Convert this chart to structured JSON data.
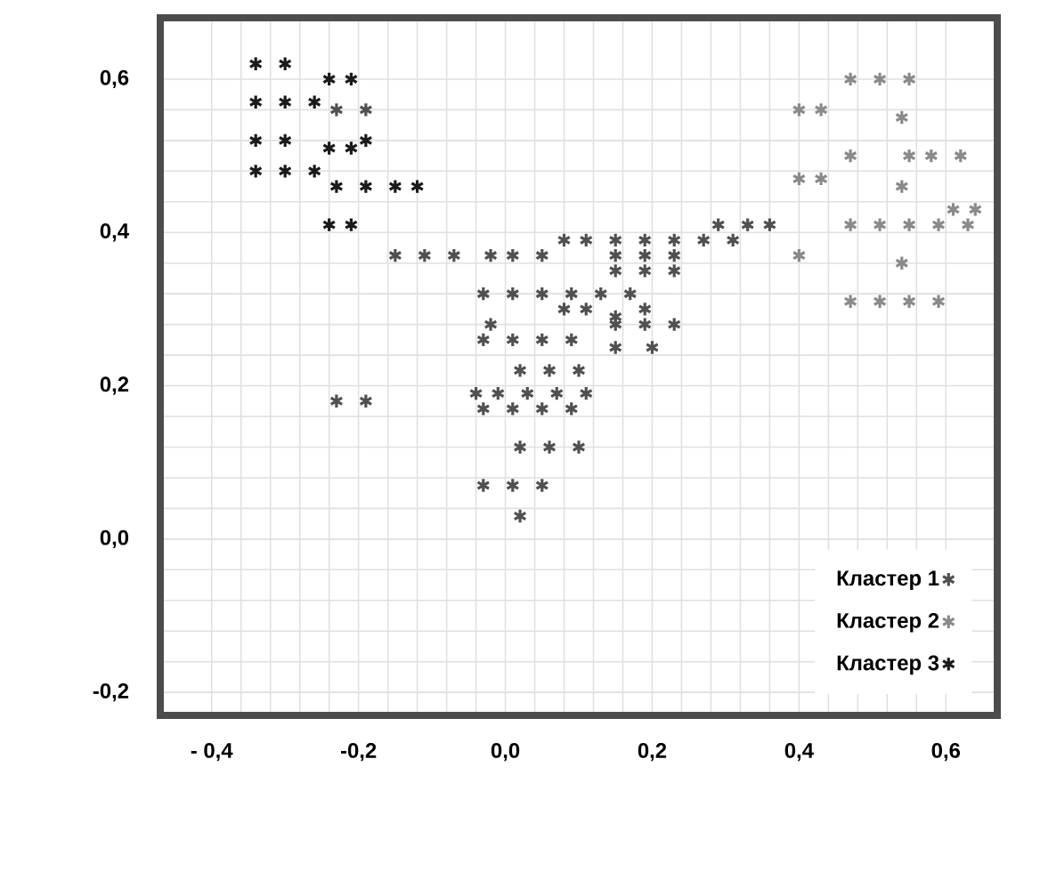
{
  "chart_data": {
    "type": "scatter",
    "marker": "cross",
    "grid": true,
    "legend": "bottom right",
    "xlim": [
      -0.47,
      0.67
    ],
    "ylim": [
      -0.23,
      0.68
    ],
    "xticks": [
      {
        "value": -0.4,
        "label": "- 0,4"
      },
      {
        "value": -0.2,
        "label": "-0,2"
      },
      {
        "value": 0.0,
        "label": "0,0"
      },
      {
        "value": 0.2,
        "label": "0,2"
      },
      {
        "value": 0.4,
        "label": "0,4"
      },
      {
        "value": 0.6,
        "label": "0,6"
      }
    ],
    "yticks": [
      {
        "value": -0.2,
        "label": "-0,2"
      },
      {
        "value": 0.0,
        "label": "0,0"
      },
      {
        "value": 0.2,
        "label": "0,2"
      },
      {
        "value": 0.4,
        "label": "0,4"
      },
      {
        "value": 0.6,
        "label": "0,6"
      }
    ],
    "series": [
      {
        "name": "Кластер 1",
        "color": "#505050",
        "x": [
          -0.23,
          -0.19,
          -0.23,
          -0.19,
          -0.15,
          -0.11,
          -0.07,
          -0.02,
          0.01,
          0.05,
          0.08,
          0.11,
          0.15,
          0.19,
          0.23,
          0.15,
          0.19,
          0.23,
          0.15,
          0.19,
          0.23,
          0.27,
          0.29,
          0.31,
          0.33,
          0.36,
          -0.03,
          0.01,
          0.05,
          0.09,
          0.13,
          0.17,
          0.08,
          0.11,
          0.15,
          0.19,
          -0.02,
          0.23,
          -0.03,
          0.01,
          0.05,
          0.09,
          0.15,
          0.19,
          0.15,
          0.2,
          0.02,
          0.06,
          0.1,
          -0.04,
          -0.01,
          0.03,
          0.07,
          0.11,
          -0.03,
          0.01,
          0.05,
          0.09,
          0.02,
          0.06,
          0.1,
          -0.03,
          0.01,
          0.05,
          0.02
        ],
        "values": [
          0.56,
          0.56,
          0.18,
          0.18,
          0.37,
          0.37,
          0.37,
          0.37,
          0.37,
          0.37,
          0.39,
          0.39,
          0.39,
          0.39,
          0.39,
          0.37,
          0.37,
          0.37,
          0.35,
          0.35,
          0.35,
          0.39,
          0.41,
          0.39,
          0.41,
          0.41,
          0.32,
          0.32,
          0.32,
          0.32,
          0.32,
          0.32,
          0.3,
          0.3,
          0.29,
          0.3,
          0.28,
          0.28,
          0.26,
          0.26,
          0.26,
          0.26,
          0.28,
          0.28,
          0.25,
          0.25,
          0.22,
          0.22,
          0.22,
          0.19,
          0.19,
          0.19,
          0.19,
          0.19,
          0.17,
          0.17,
          0.17,
          0.17,
          0.12,
          0.12,
          0.12,
          0.07,
          0.07,
          0.07,
          0.03
        ]
      },
      {
        "name": "Кластер 2",
        "color": "#8a8a8a",
        "x": [
          0.4,
          0.43,
          0.47,
          0.51,
          0.55,
          0.54,
          0.47,
          0.55,
          0.58,
          0.62,
          0.4,
          0.43,
          0.54,
          0.47,
          0.51,
          0.55,
          0.59,
          0.63,
          0.61,
          0.64,
          0.54,
          0.47,
          0.51,
          0.55,
          0.59,
          0.4
        ],
        "values": [
          0.56,
          0.56,
          0.6,
          0.6,
          0.6,
          0.55,
          0.5,
          0.5,
          0.5,
          0.5,
          0.47,
          0.47,
          0.46,
          0.41,
          0.41,
          0.41,
          0.41,
          0.41,
          0.43,
          0.43,
          0.36,
          0.31,
          0.31,
          0.31,
          0.31,
          0.37
        ]
      },
      {
        "name": "Кластер 3",
        "color": "#1a1a1a",
        "x": [
          -0.34,
          -0.3,
          -0.24,
          -0.21,
          -0.34,
          -0.3,
          -0.26,
          -0.34,
          -0.3,
          -0.24,
          -0.21,
          -0.19,
          -0.34,
          -0.3,
          -0.26,
          -0.23,
          -0.19,
          -0.15,
          -0.12,
          -0.24,
          -0.21
        ],
        "values": [
          0.62,
          0.62,
          0.6,
          0.6,
          0.57,
          0.57,
          0.57,
          0.52,
          0.52,
          0.51,
          0.51,
          0.52,
          0.48,
          0.48,
          0.48,
          0.46,
          0.46,
          0.46,
          0.46,
          0.41,
          0.41
        ]
      }
    ]
  }
}
